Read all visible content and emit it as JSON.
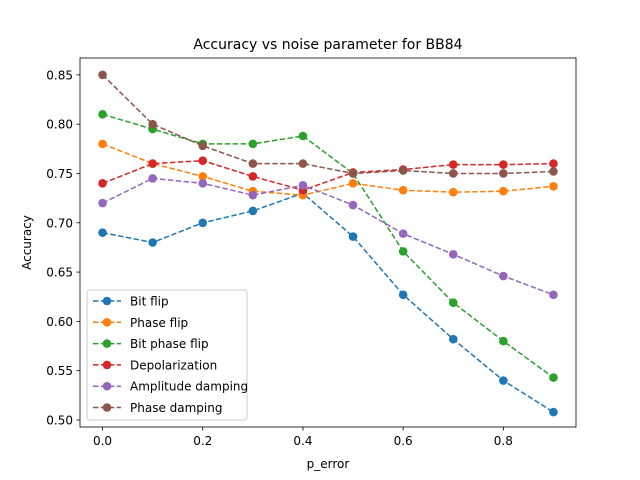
{
  "chart_data": {
    "type": "line",
    "title": "Accuracy vs noise parameter for BB84",
    "xlabel": "p_error",
    "ylabel": "Accuracy",
    "xlim": [
      -0.045,
      0.945
    ],
    "ylim": [
      0.4929,
      0.8671
    ],
    "xticks": [
      0.0,
      0.2,
      0.4,
      0.6,
      0.8
    ],
    "xtick_labels": [
      "0.0",
      "0.2",
      "0.4",
      "0.6",
      "0.8"
    ],
    "yticks": [
      0.5,
      0.55,
      0.6,
      0.65,
      0.7,
      0.75,
      0.8,
      0.85
    ],
    "ytick_labels": [
      "0.50",
      "0.55",
      "0.60",
      "0.65",
      "0.70",
      "0.75",
      "0.80",
      "0.85"
    ],
    "grid": false,
    "legend_position": "lower-left",
    "x": [
      0.0,
      0.1,
      0.2,
      0.3,
      0.4,
      0.5,
      0.6,
      0.7,
      0.8,
      0.9
    ],
    "series": [
      {
        "name": "Bit flip",
        "color": "#1f77b4",
        "values": [
          0.69,
          0.68,
          0.7,
          0.712,
          0.73,
          0.686,
          0.627,
          0.582,
          0.54,
          0.508
        ]
      },
      {
        "name": "Phase flip",
        "color": "#ff7f0e",
        "values": [
          0.78,
          0.76,
          0.747,
          0.732,
          0.728,
          0.74,
          0.733,
          0.731,
          0.732,
          0.737
        ]
      },
      {
        "name": "Bit phase flip",
        "color": "#2ca02c",
        "values": [
          0.81,
          0.795,
          0.78,
          0.78,
          0.788,
          0.75,
          0.671,
          0.619,
          0.58,
          0.543
        ]
      },
      {
        "name": "Depolarization",
        "color": "#d62728",
        "values": [
          0.74,
          0.76,
          0.763,
          0.747,
          0.733,
          0.751,
          0.754,
          0.759,
          0.759,
          0.76
        ]
      },
      {
        "name": "Amplitude damping",
        "color": "#9467bd",
        "values": [
          0.72,
          0.745,
          0.74,
          0.728,
          0.738,
          0.718,
          0.689,
          0.668,
          0.646,
          0.627
        ]
      },
      {
        "name": "Phase damping",
        "color": "#8c564b",
        "values": [
          0.85,
          0.8,
          0.778,
          0.76,
          0.76,
          0.75,
          0.753,
          0.75,
          0.75,
          0.752
        ]
      }
    ]
  }
}
